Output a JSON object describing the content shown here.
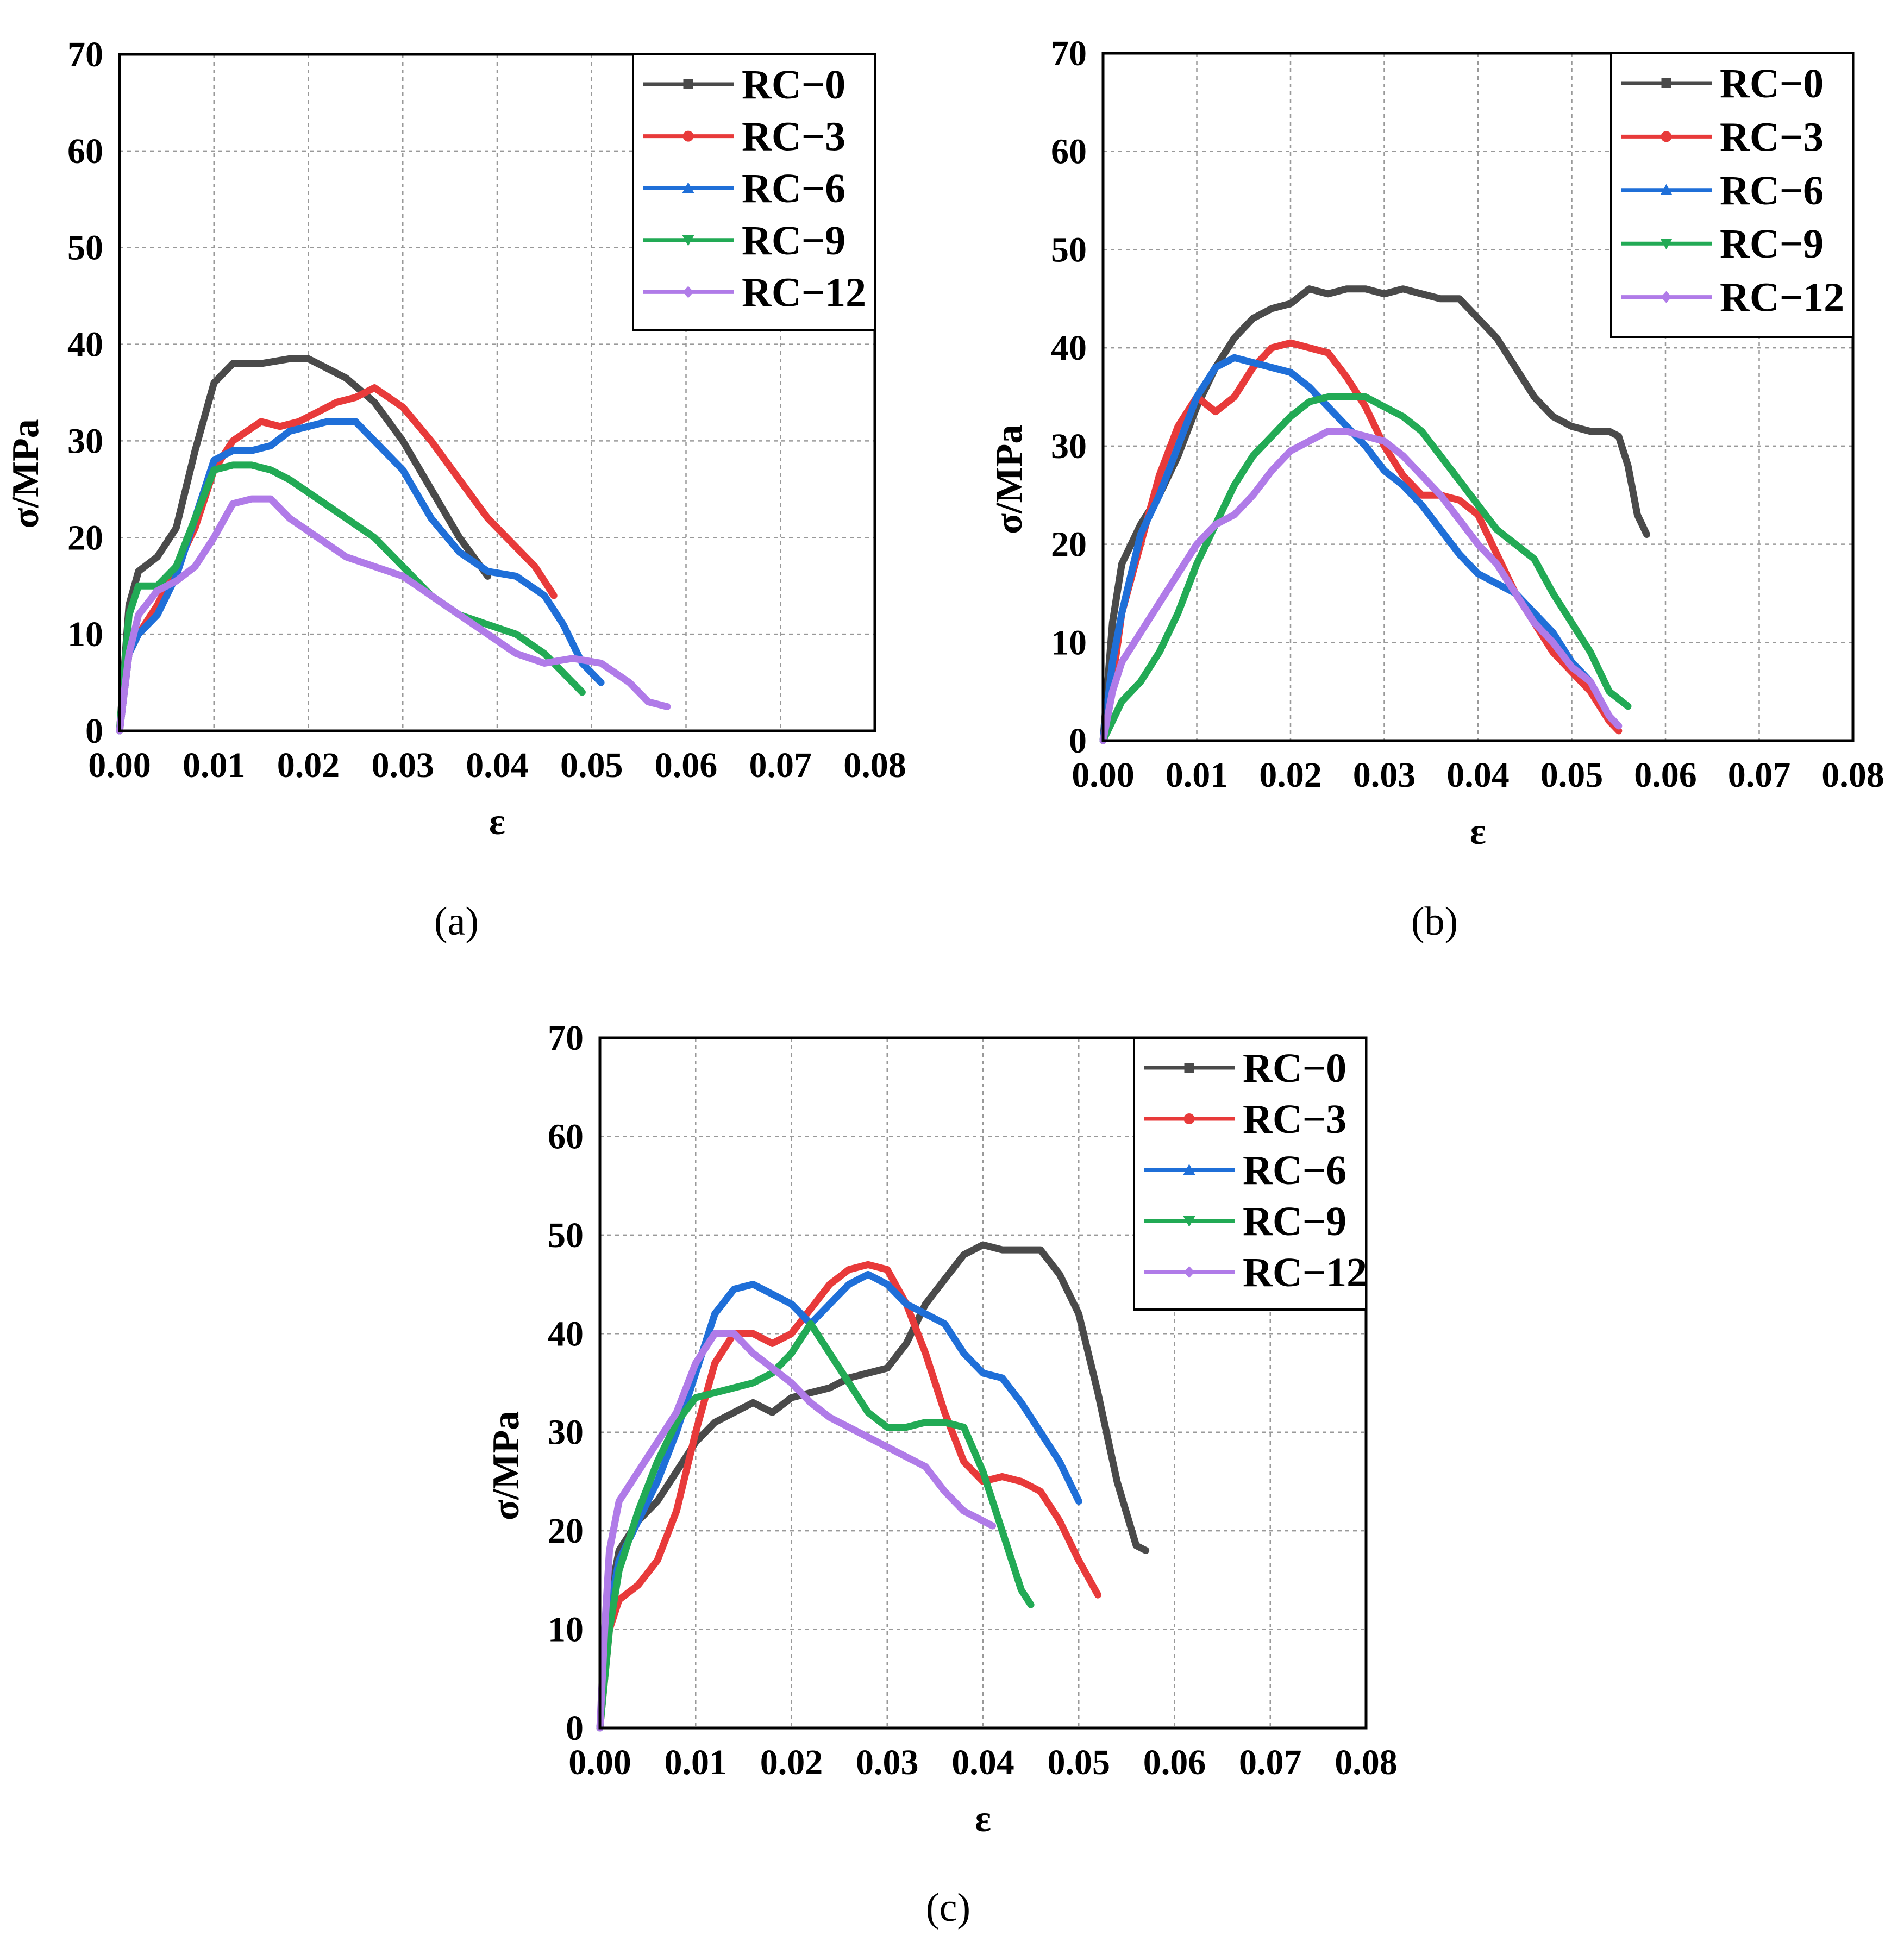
{
  "chart_data": [
    {
      "type": "line",
      "caption": "(a)",
      "xlabel": "ε",
      "ylabel": "σ/MPa",
      "xlim": [
        0,
        0.08
      ],
      "ylim": [
        0,
        70
      ],
      "xticks": [
        "0.00",
        "0.01",
        "0.02",
        "0.03",
        "0.04",
        "0.05",
        "0.06",
        "0.07",
        "0.08"
      ],
      "yticks": [
        "0",
        "10",
        "20",
        "30",
        "40",
        "50",
        "60",
        "70"
      ],
      "grid": true,
      "legend": "top-right",
      "series": [
        {
          "name": "RC−0",
          "color": "#4a4a4a",
          "marker": "square",
          "x": [
            0,
            0.001,
            0.002,
            0.004,
            0.006,
            0.008,
            0.01,
            0.012,
            0.015,
            0.018,
            0.02,
            0.022,
            0.024,
            0.027,
            0.03,
            0.033,
            0.036,
            0.039
          ],
          "y": [
            0,
            13,
            16.5,
            18,
            21,
            29,
            36,
            38,
            38,
            38.5,
            38.5,
            37.5,
            36.5,
            34,
            30,
            25,
            20,
            16
          ]
        },
        {
          "name": "RC−3",
          "color": "#e83a3a",
          "marker": "circle",
          "x": [
            0,
            0.001,
            0.002,
            0.004,
            0.006,
            0.008,
            0.01,
            0.012,
            0.015,
            0.017,
            0.019,
            0.021,
            0.023,
            0.025,
            0.027,
            0.03,
            0.033,
            0.036,
            0.039,
            0.042,
            0.044,
            0.046
          ],
          "y": [
            0,
            8,
            10,
            13,
            17,
            21,
            27,
            30,
            32,
            31.5,
            32,
            33,
            34,
            34.5,
            35.5,
            33.5,
            30,
            26,
            22,
            19,
            17,
            14
          ]
        },
        {
          "name": "RC−6",
          "color": "#1f6fd8",
          "marker": "triangle",
          "x": [
            0,
            0.001,
            0.002,
            0.004,
            0.006,
            0.008,
            0.01,
            0.012,
            0.014,
            0.016,
            0.018,
            0.02,
            0.022,
            0.024,
            0.025,
            0.027,
            0.03,
            0.033,
            0.036,
            0.039,
            0.042,
            0.045,
            0.047,
            0.049,
            0.051
          ],
          "y": [
            0,
            8,
            10,
            12,
            16,
            22,
            28,
            29,
            29,
            29.5,
            31,
            31.5,
            32,
            32,
            32,
            30,
            27,
            22,
            18.5,
            16.5,
            16,
            14,
            11,
            7,
            5
          ]
        },
        {
          "name": "RC−9",
          "color": "#22aa55",
          "marker": "triangle-down",
          "x": [
            0,
            0.001,
            0.002,
            0.004,
            0.006,
            0.008,
            0.01,
            0.012,
            0.014,
            0.016,
            0.018,
            0.021,
            0.024,
            0.027,
            0.03,
            0.033,
            0.036,
            0.039,
            0.042,
            0.045,
            0.047,
            0.049
          ],
          "y": [
            0,
            12,
            15,
            15,
            17,
            22,
            27,
            27.5,
            27.5,
            27,
            26,
            24,
            22,
            20,
            17,
            14,
            12,
            11,
            10,
            8,
            6,
            4
          ]
        },
        {
          "name": "RC−12",
          "color": "#b07be8",
          "marker": "diamond",
          "x": [
            0,
            0.001,
            0.002,
            0.004,
            0.006,
            0.008,
            0.01,
            0.012,
            0.014,
            0.016,
            0.018,
            0.021,
            0.024,
            0.027,
            0.03,
            0.033,
            0.036,
            0.039,
            0.042,
            0.045,
            0.048,
            0.051,
            0.054,
            0.056,
            0.058
          ],
          "y": [
            0,
            8,
            12,
            14.5,
            15.5,
            17,
            20,
            23.5,
            24,
            24,
            22,
            20,
            18,
            17,
            16,
            14,
            12,
            10,
            8,
            7,
            7.5,
            7,
            5,
            3,
            2.5
          ]
        }
      ]
    },
    {
      "type": "line",
      "caption": "(b)",
      "xlabel": "ε",
      "ylabel": "σ/MPa",
      "xlim": [
        0,
        0.08
      ],
      "ylim": [
        0,
        70
      ],
      "xticks": [
        "0.00",
        "0.01",
        "0.02",
        "0.03",
        "0.04",
        "0.05",
        "0.06",
        "0.07",
        "0.08"
      ],
      "yticks": [
        "0",
        "10",
        "20",
        "30",
        "40",
        "50",
        "60",
        "70"
      ],
      "grid": true,
      "legend": "top-right",
      "series": [
        {
          "name": "RC−0",
          "color": "#4a4a4a",
          "marker": "square",
          "x": [
            0,
            0.001,
            0.002,
            0.004,
            0.006,
            0.008,
            0.01,
            0.012,
            0.014,
            0.016,
            0.018,
            0.02,
            0.022,
            0.024,
            0.026,
            0.028,
            0.03,
            0.032,
            0.034,
            0.036,
            0.038,
            0.04,
            0.042,
            0.044,
            0.046,
            0.048,
            0.05,
            0.052,
            0.054,
            0.055,
            0.056,
            0.057,
            0.058
          ],
          "y": [
            0,
            12,
            18,
            22,
            25,
            29,
            34,
            38,
            41,
            43,
            44,
            44.5,
            46,
            45.5,
            46,
            46,
            45.5,
            46,
            45.5,
            45,
            45,
            43,
            41,
            38,
            35,
            33,
            32,
            31.5,
            31.5,
            31,
            28,
            23,
            21
          ]
        },
        {
          "name": "RC−3",
          "color": "#e83a3a",
          "marker": "circle",
          "x": [
            0,
            0.001,
            0.002,
            0.004,
            0.006,
            0.008,
            0.01,
            0.012,
            0.014,
            0.016,
            0.018,
            0.02,
            0.022,
            0.024,
            0.026,
            0.028,
            0.03,
            0.032,
            0.034,
            0.036,
            0.038,
            0.04,
            0.042,
            0.044,
            0.046,
            0.048,
            0.05,
            0.052,
            0.054,
            0.055
          ],
          "y": [
            0,
            6,
            13,
            20,
            27,
            32,
            35,
            33.5,
            35,
            38,
            40,
            40.5,
            40,
            39.5,
            37,
            34,
            30,
            27,
            25,
            25,
            24.5,
            23,
            19,
            15,
            12,
            9,
            7,
            5,
            2,
            1
          ]
        },
        {
          "name": "RC−6",
          "color": "#1f6fd8",
          "marker": "triangle",
          "x": [
            0,
            0.001,
            0.002,
            0.004,
            0.006,
            0.008,
            0.01,
            0.012,
            0.014,
            0.016,
            0.018,
            0.02,
            0.022,
            0.024,
            0.026,
            0.028,
            0.03,
            0.032,
            0.034,
            0.036,
            0.038,
            0.04,
            0.042,
            0.044,
            0.046,
            0.048,
            0.05,
            0.052
          ],
          "y": [
            0,
            8,
            13,
            21,
            25,
            30,
            35,
            38,
            39,
            38.5,
            38,
            37.5,
            36,
            34,
            32,
            30,
            27.5,
            26,
            24,
            21.5,
            19,
            17,
            16,
            15,
            13,
            11,
            8,
            6
          ]
        },
        {
          "name": "RC−9",
          "color": "#22aa55",
          "marker": "triangle-down",
          "x": [
            0,
            0.001,
            0.002,
            0.004,
            0.006,
            0.008,
            0.01,
            0.012,
            0.014,
            0.016,
            0.018,
            0.02,
            0.022,
            0.024,
            0.026,
            0.028,
            0.03,
            0.032,
            0.034,
            0.036,
            0.038,
            0.04,
            0.042,
            0.044,
            0.046,
            0.048,
            0.05,
            0.052,
            0.054,
            0.056
          ],
          "y": [
            0,
            2,
            4,
            6,
            9,
            13,
            18,
            22,
            26,
            29,
            31,
            33,
            34.5,
            35,
            35,
            35,
            34,
            33,
            31.5,
            29,
            26.5,
            24,
            21.5,
            20,
            18.5,
            15,
            12,
            9,
            5,
            3.5
          ]
        },
        {
          "name": "RC−12",
          "color": "#b07be8",
          "marker": "diamond",
          "x": [
            0,
            0.001,
            0.002,
            0.004,
            0.006,
            0.008,
            0.01,
            0.012,
            0.014,
            0.016,
            0.018,
            0.02,
            0.022,
            0.024,
            0.026,
            0.028,
            0.03,
            0.032,
            0.034,
            0.036,
            0.038,
            0.04,
            0.042,
            0.044,
            0.046,
            0.048,
            0.05,
            0.052,
            0.054,
            0.055
          ],
          "y": [
            0,
            5,
            8,
            11,
            14,
            17,
            20,
            22,
            23,
            25,
            27.5,
            29.5,
            30.5,
            31.5,
            31.5,
            31,
            30.5,
            29,
            27,
            25,
            22.5,
            20,
            18,
            15,
            12,
            10,
            7.5,
            6,
            2.5,
            1.5
          ]
        }
      ]
    },
    {
      "type": "line",
      "caption": "(c)",
      "xlabel": "ε",
      "ylabel": "σ/MPa",
      "xlim": [
        0,
        0.08
      ],
      "ylim": [
        0,
        70
      ],
      "xticks": [
        "0.00",
        "0.01",
        "0.02",
        "0.03",
        "0.04",
        "0.05",
        "0.06",
        "0.07",
        "0.08"
      ],
      "yticks": [
        "0",
        "10",
        "20",
        "30",
        "40",
        "50",
        "60",
        "70"
      ],
      "grid": true,
      "legend": "top-right",
      "series": [
        {
          "name": "RC−0",
          "color": "#4a4a4a",
          "marker": "square",
          "x": [
            0,
            0.001,
            0.002,
            0.004,
            0.006,
            0.008,
            0.01,
            0.012,
            0.014,
            0.016,
            0.018,
            0.02,
            0.022,
            0.024,
            0.026,
            0.028,
            0.03,
            0.032,
            0.034,
            0.036,
            0.038,
            0.04,
            0.042,
            0.044,
            0.046,
            0.048,
            0.05,
            0.052,
            0.054,
            0.056,
            0.057
          ],
          "y": [
            0,
            13,
            18,
            21,
            23,
            26,
            29,
            31,
            32,
            33,
            32,
            33.5,
            34,
            34.5,
            35.5,
            36,
            36.5,
            39,
            43,
            45.5,
            48,
            49,
            48.5,
            48.5,
            48.5,
            46,
            42,
            34,
            25,
            18.5,
            18
          ]
        },
        {
          "name": "RC−3",
          "color": "#e83a3a",
          "marker": "circle",
          "x": [
            0,
            0.001,
            0.002,
            0.004,
            0.006,
            0.008,
            0.01,
            0.012,
            0.014,
            0.016,
            0.018,
            0.02,
            0.022,
            0.024,
            0.026,
            0.028,
            0.03,
            0.032,
            0.034,
            0.036,
            0.038,
            0.04,
            0.042,
            0.044,
            0.046,
            0.048,
            0.05,
            0.052
          ],
          "y": [
            0,
            10,
            13,
            14.5,
            17,
            22,
            30,
            37,
            40,
            40,
            39,
            40,
            42.5,
            45,
            46.5,
            47,
            46.5,
            43,
            38,
            32,
            27,
            25,
            25.5,
            25,
            24,
            21,
            17,
            13.5
          ]
        },
        {
          "name": "RC−6",
          "color": "#1f6fd8",
          "marker": "triangle",
          "x": [
            0,
            0.001,
            0.002,
            0.004,
            0.006,
            0.008,
            0.01,
            0.012,
            0.014,
            0.016,
            0.018,
            0.02,
            0.022,
            0.024,
            0.026,
            0.028,
            0.03,
            0.032,
            0.034,
            0.036,
            0.038,
            0.04,
            0.042,
            0.044,
            0.046,
            0.048,
            0.05
          ],
          "y": [
            0,
            12,
            17,
            21,
            25,
            30,
            36,
            42,
            44.5,
            45,
            44,
            43,
            41,
            43,
            45,
            46,
            45,
            43,
            42,
            41,
            38,
            36,
            35.5,
            33,
            30,
            27,
            23
          ]
        },
        {
          "name": "RC−9",
          "color": "#22aa55",
          "marker": "triangle-down",
          "x": [
            0,
            0.001,
            0.002,
            0.004,
            0.006,
            0.008,
            0.01,
            0.012,
            0.014,
            0.016,
            0.018,
            0.02,
            0.022,
            0.024,
            0.026,
            0.028,
            0.03,
            0.032,
            0.034,
            0.036,
            0.038,
            0.04,
            0.042,
            0.044,
            0.045
          ],
          "y": [
            0,
            10,
            16,
            22,
            27,
            31,
            33.5,
            34,
            34.5,
            35,
            36,
            38,
            41,
            38,
            35,
            32,
            30.5,
            30.5,
            31,
            31,
            30.5,
            26,
            20,
            14,
            12.5
          ]
        },
        {
          "name": "RC−12",
          "color": "#b07be8",
          "marker": "diamond",
          "x": [
            0,
            0.0005,
            0.001,
            0.002,
            0.004,
            0.006,
            0.008,
            0.01,
            0.012,
            0.014,
            0.016,
            0.018,
            0.02,
            0.022,
            0.024,
            0.026,
            0.028,
            0.03,
            0.032,
            0.034,
            0.036,
            0.038,
            0.04,
            0.041
          ],
          "y": [
            0,
            10,
            18,
            23,
            26,
            29,
            32,
            37,
            40,
            40,
            38,
            36.5,
            35,
            33,
            31.5,
            30.5,
            29.5,
            28.5,
            27.5,
            26.5,
            24,
            22,
            21,
            20.5
          ]
        }
      ]
    }
  ]
}
